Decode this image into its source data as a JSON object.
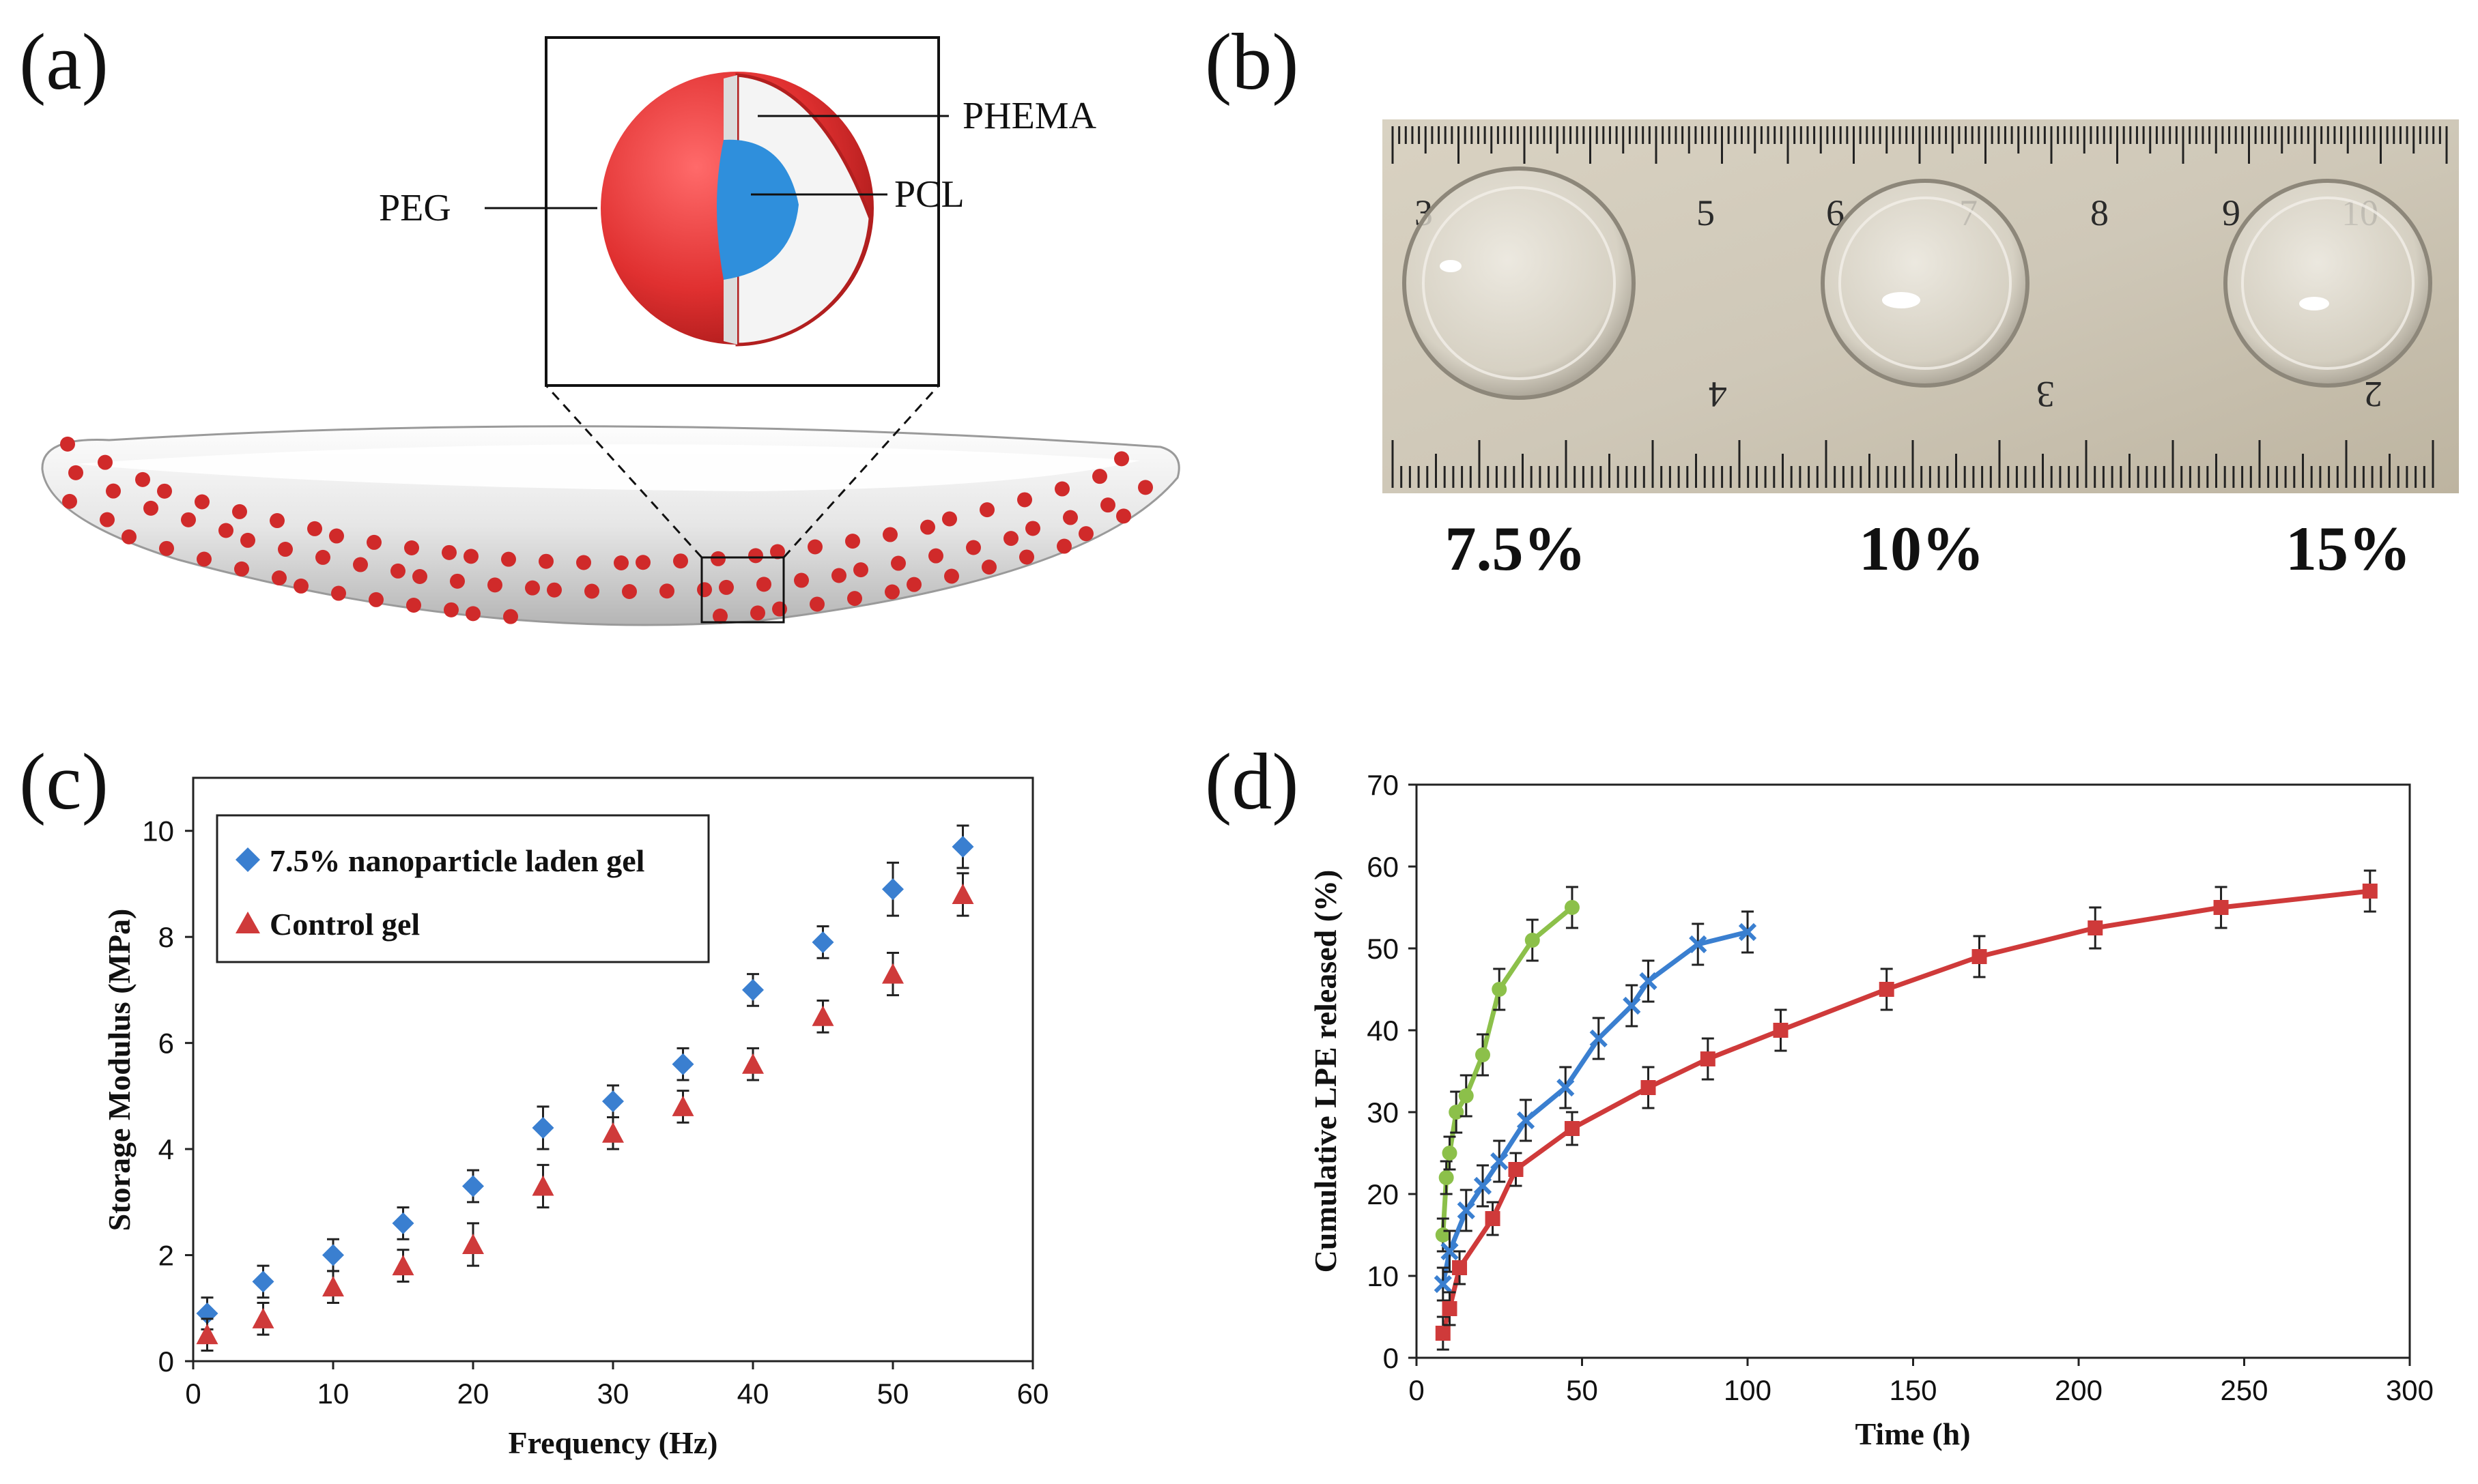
{
  "panels": {
    "a": {
      "label": "(a)",
      "layers": [
        "PHEMA",
        "PEG",
        "PCL"
      ],
      "colors": {
        "peg": "#e53030",
        "pcl": "#2f8fdc",
        "phema": "#f4f4f4",
        "dots": "#d02a2a"
      }
    },
    "b": {
      "label": "(b)",
      "samples": [
        "7.5%",
        "10%",
        "15%"
      ],
      "ruler_top": [
        "3",
        "5",
        "6",
        "7",
        "8",
        "9",
        "10"
      ],
      "ruler_bottom": [
        "4",
        "3",
        "2"
      ]
    },
    "c": {
      "label": "(c)"
    },
    "d": {
      "label": "(d)"
    }
  },
  "chart_data": [
    {
      "id": "c",
      "type": "scatter",
      "title": "",
      "xlabel": "Frequency (Hz)",
      "ylabel": "Storage Modulus (MPa)",
      "xlim": [
        0,
        60
      ],
      "ylim": [
        0,
        11
      ],
      "xticks": [
        0,
        10,
        20,
        30,
        40,
        50,
        60
      ],
      "yticks": [
        0,
        2,
        4,
        6,
        8,
        10
      ],
      "legend_position": "top-left",
      "series": [
        {
          "name": "7.5% nanoparticle laden gel",
          "color": "#3a7fd0",
          "marker": "diamond",
          "x": [
            1,
            5,
            10,
            15,
            20,
            25,
            30,
            35,
            40,
            45,
            50,
            55
          ],
          "y": [
            0.9,
            1.5,
            2.0,
            2.6,
            3.3,
            4.4,
            4.9,
            5.6,
            7.0,
            7.9,
            8.9,
            9.7
          ],
          "err": [
            0.3,
            0.3,
            0.3,
            0.3,
            0.3,
            0.4,
            0.3,
            0.3,
            0.3,
            0.3,
            0.5,
            0.4
          ]
        },
        {
          "name": "Control gel",
          "color": "#cf3a3a",
          "marker": "triangle",
          "x": [
            1,
            5,
            10,
            15,
            20,
            25,
            30,
            35,
            40,
            45,
            50,
            55
          ],
          "y": [
            0.5,
            0.8,
            1.4,
            1.8,
            2.2,
            3.3,
            4.3,
            4.8,
            5.6,
            6.5,
            7.3,
            8.8
          ],
          "err": [
            0.3,
            0.3,
            0.3,
            0.3,
            0.4,
            0.4,
            0.3,
            0.3,
            0.3,
            0.3,
            0.4,
            0.4
          ]
        }
      ]
    },
    {
      "id": "d",
      "type": "line",
      "title": "",
      "xlabel": "Time (h)",
      "ylabel": "Cumulative LPE released (%)",
      "xlim": [
        0,
        300
      ],
      "ylim": [
        0,
        70
      ],
      "xticks": [
        0,
        50,
        100,
        150,
        200,
        250,
        300
      ],
      "yticks": [
        0,
        10,
        20,
        30,
        40,
        50,
        60,
        70
      ],
      "series": [
        {
          "name": "green",
          "color": "#8cc04a",
          "marker": "circle",
          "x": [
            8,
            9,
            10,
            12,
            15,
            20,
            25,
            35,
            47
          ],
          "y": [
            15,
            22,
            25,
            30,
            32,
            37,
            45,
            51,
            55
          ],
          "err": [
            2,
            2,
            2,
            2.5,
            2.5,
            2.5,
            2.5,
            2.5,
            2.5
          ]
        },
        {
          "name": "blue",
          "color": "#3a7fd0",
          "marker": "x",
          "x": [
            8,
            10,
            15,
            20,
            25,
            33,
            45,
            55,
            65,
            70,
            85,
            100
          ],
          "y": [
            9,
            13,
            18,
            21,
            24,
            29,
            33,
            39,
            43,
            46,
            50.5,
            52
          ],
          "err": [
            2,
            2.5,
            2.5,
            2.5,
            2.5,
            2.5,
            2.5,
            2.5,
            2.5,
            2.5,
            2.5,
            2.5
          ]
        },
        {
          "name": "red",
          "color": "#cf3a3a",
          "marker": "square",
          "x": [
            8,
            10,
            13,
            23,
            30,
            47,
            70,
            88,
            110,
            142,
            170,
            205,
            243,
            288
          ],
          "y": [
            3,
            6,
            11,
            17,
            23,
            28,
            33,
            36.5,
            40,
            45,
            49,
            52.5,
            55,
            57
          ],
          "err": [
            2,
            2,
            2,
            2,
            2,
            2,
            2.5,
            2.5,
            2.5,
            2.5,
            2.5,
            2.5,
            2.5,
            2.5
          ]
        }
      ]
    }
  ]
}
